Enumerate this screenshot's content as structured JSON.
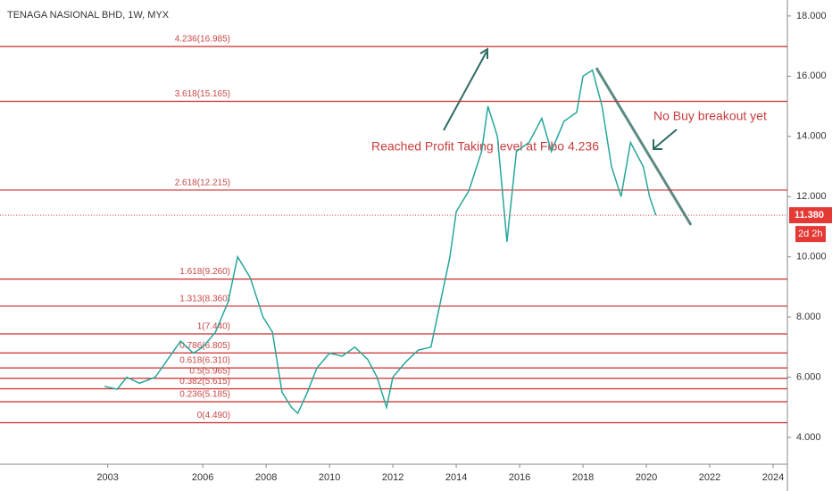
{
  "chart_data": {
    "type": "line",
    "title": "TENAGA NASIONAL BHD, 1W, MYX",
    "color": "#26a69a",
    "level_color": "#cc2b2b",
    "xlim": [
      1999.6,
      2024.45
    ],
    "xticks": [
      2003,
      2006,
      2008,
      2010,
      2012,
      2014,
      2016,
      2018,
      2020,
      2022,
      2024
    ],
    "ylim": [
      3.11,
      18.53
    ],
    "yticks": [
      {
        "value": 4,
        "label": "4.000"
      },
      {
        "value": 6,
        "label": "6.000"
      },
      {
        "value": 8,
        "label": "8.000"
      },
      {
        "value": 10,
        "label": "10.000"
      },
      {
        "value": 12,
        "label": "12.000"
      },
      {
        "value": 14,
        "label": "14.000"
      },
      {
        "value": 16,
        "label": "16.000"
      },
      {
        "value": 18,
        "label": "18.000"
      }
    ],
    "x": [
      2002.9,
      2003.3,
      2003.6,
      2004.0,
      2004.5,
      2004.9,
      2005.3,
      2005.7,
      2006.0,
      2006.4,
      2006.8,
      2007.1,
      2007.5,
      2007.9,
      2008.2,
      2008.5,
      2008.8,
      2009.0,
      2009.3,
      2009.6,
      2010.0,
      2010.4,
      2010.8,
      2011.2,
      2011.5,
      2011.8,
      2012.0,
      2012.4,
      2012.8,
      2013.2,
      2013.5,
      2013.8,
      2014.0,
      2014.4,
      2014.8,
      2015.0,
      2015.3,
      2015.6,
      2015.9,
      2016.3,
      2016.7,
      2017.0,
      2017.4,
      2017.8,
      2018.0,
      2018.3,
      2018.6,
      2018.9,
      2019.2,
      2019.5,
      2019.9,
      2020.1,
      2020.3
    ],
    "values": [
      5.7,
      5.6,
      6.0,
      5.8,
      6.0,
      6.6,
      7.2,
      6.8,
      7.0,
      7.5,
      8.5,
      10.0,
      9.3,
      8.0,
      7.5,
      5.5,
      5.0,
      4.8,
      5.5,
      6.3,
      6.8,
      6.7,
      7.0,
      6.6,
      6.0,
      5.0,
      6.0,
      6.5,
      6.9,
      7.0,
      8.5,
      10.0,
      11.5,
      12.2,
      13.5,
      15.0,
      14.0,
      10.5,
      13.5,
      13.8,
      14.6,
      13.5,
      14.5,
      14.8,
      16.0,
      16.2,
      15.0,
      13.0,
      12.0,
      13.8,
      13.0,
      12.0,
      11.38
    ],
    "levels": [
      {
        "label": "4.236(16.985)",
        "value": 16.985
      },
      {
        "label": "3.618(15.165)",
        "value": 15.165
      },
      {
        "label": "2.618(12.215)",
        "value": 12.215
      },
      {
        "label": "1.618(9.260)",
        "value": 9.26
      },
      {
        "label": "1.313(8.360)",
        "value": 8.36
      },
      {
        "label": "1(7.440)",
        "value": 7.44
      },
      {
        "label": "0.786(6.805)",
        "value": 6.805
      },
      {
        "label": "0.618(6.310)",
        "value": 6.31
      },
      {
        "label": "0.5(5.965)",
        "value": 5.965
      },
      {
        "label": "0.382(5.615)",
        "value": 5.615
      },
      {
        "label": "0.236(5.185)",
        "value": 5.185
      },
      {
        "label": "0(4.490)",
        "value": 4.49
      }
    ],
    "last_price": {
      "value": 11.38,
      "label": "11.380"
    },
    "countdown": "2d 2h",
    "annotations": [
      "Reached Profit Taking level at Fibo 4.236",
      "No Buy breakout yet"
    ]
  }
}
